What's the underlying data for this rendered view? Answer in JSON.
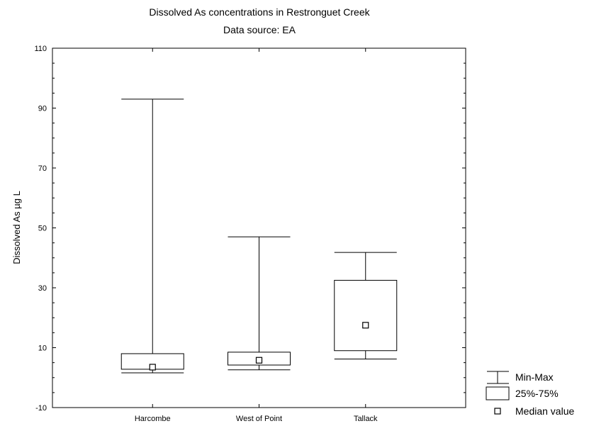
{
  "chart_data": {
    "type": "boxplot",
    "title": "Dissolved As concentrations in Restronguet Creek",
    "subtitle": "Data source: EA",
    "xlabel": "",
    "ylabel": "Dissolved As  µg L",
    "ylim": [
      -10,
      110
    ],
    "yticks": [
      -10,
      10,
      30,
      50,
      70,
      90,
      110
    ],
    "categories": [
      "Harcombe",
      "West of Point",
      "Tallack"
    ],
    "boxes": [
      {
        "category": "Harcombe",
        "min": 1.6,
        "q1": 2.8,
        "median": 3.5,
        "q3": 8.0,
        "max": 93.0
      },
      {
        "category": "West of Point",
        "min": 2.6,
        "q1": 4.2,
        "median": 5.8,
        "q3": 8.5,
        "max": 47.0
      },
      {
        "category": "Tallack",
        "min": 6.2,
        "q1": 9.0,
        "median": 17.5,
        "q3": 32.5,
        "max": 41.8
      }
    ],
    "legend": {
      "position": "bottom-right",
      "entries": [
        "Min-Max",
        "25%-75%",
        "Median value"
      ]
    },
    "grid": false
  }
}
